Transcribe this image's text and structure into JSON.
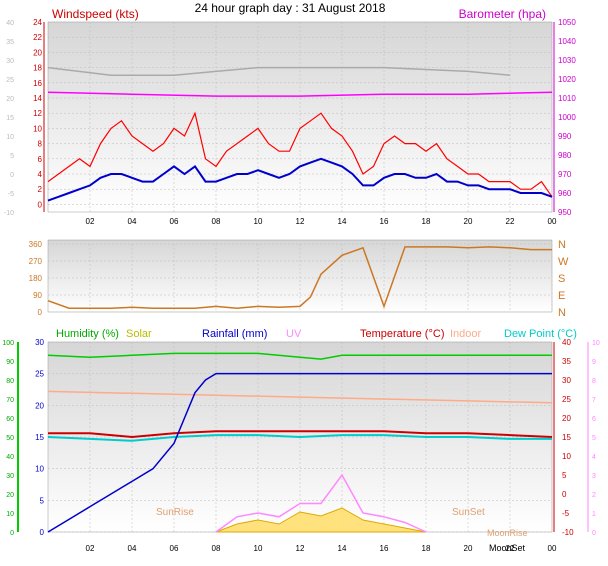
{
  "chart_data": [
    {
      "type": "line",
      "title": "24 hour graph day : 31 August 2018",
      "x_ticks": [
        "02",
        "04",
        "06",
        "08",
        "10",
        "12",
        "14",
        "16",
        "18",
        "20",
        "22",
        "00"
      ],
      "left_axis": {
        "label": "Windspeed (kts)",
        "ticks": [
          "-1",
          "0",
          "1",
          "2",
          "3",
          "4",
          "5",
          "6",
          "7",
          "8",
          "9",
          "10",
          "11",
          "12",
          "13",
          "14",
          "15",
          "16",
          "17",
          "18",
          "19",
          "20",
          "21",
          "22",
          "23",
          "24"
        ],
        "labeled": [
          "-10",
          "-5",
          "0",
          "5",
          "10",
          "15",
          "20",
          "25",
          "30",
          "35",
          "40"
        ],
        "range": [
          -1,
          24
        ]
      },
      "right_axis": {
        "label": "Barometer (hpa)",
        "ticks": [
          "950",
          "960",
          "970",
          "980",
          "990",
          "1000",
          "1010",
          "1020",
          "1030",
          "1040",
          "1050"
        ],
        "range": [
          950,
          1050
        ]
      },
      "series": [
        {
          "name": "Windspeed (kts)",
          "color": "#ff0000",
          "x": [
            0,
            0.5,
            1,
            1.5,
            2,
            2.5,
            3,
            3.5,
            4,
            4.5,
            5,
            5.5,
            6,
            6.5,
            7,
            7.5,
            8,
            8.5,
            9,
            9.5,
            10,
            10.5,
            11,
            11.5,
            12,
            12.5,
            13,
            13.5,
            14,
            14.5,
            15,
            15.5,
            16,
            16.5,
            17,
            17.5,
            18,
            18.5,
            19,
            19.5,
            20,
            20.5,
            21,
            21.5,
            22,
            22.5,
            23,
            23.5,
            24
          ],
          "y": [
            3,
            4,
            5,
            6,
            5,
            8,
            10,
            11,
            9,
            8,
            7,
            8,
            10,
            9,
            12,
            6,
            5,
            7,
            8,
            9,
            10,
            8,
            7,
            7,
            10,
            11,
            12,
            10,
            9,
            7,
            4,
            5,
            8,
            9,
            8,
            8,
            7,
            8,
            6,
            5,
            4,
            4,
            3,
            3,
            3,
            2,
            2,
            3,
            1
          ]
        },
        {
          "name": "Wind average",
          "color": "#0000cc",
          "x": [
            0,
            0.5,
            1,
            1.5,
            2,
            2.5,
            3,
            3.5,
            4,
            4.5,
            5,
            5.5,
            6,
            6.5,
            7,
            7.5,
            8,
            8.5,
            9,
            9.5,
            10,
            10.5,
            11,
            11.5,
            12,
            12.5,
            13,
            13.5,
            14,
            14.5,
            15,
            15.5,
            16,
            16.5,
            17,
            17.5,
            18,
            18.5,
            19,
            19.5,
            20,
            20.5,
            21,
            21.5,
            22,
            22.5,
            23,
            23.5,
            24
          ],
          "y": [
            0.5,
            1,
            1.5,
            2,
            2.5,
            3.5,
            4,
            4,
            3.5,
            3,
            3,
            4,
            5,
            4,
            5,
            3,
            3,
            3.5,
            4,
            4,
            4.5,
            4,
            3.5,
            4,
            5,
            5.5,
            6,
            5.5,
            5,
            4,
            2.5,
            2.5,
            3.5,
            4,
            4,
            3.5,
            3.5,
            4,
            3,
            3,
            2.5,
            2.5,
            2,
            2,
            2,
            1.5,
            1.5,
            1.5,
            1
          ]
        },
        {
          "name": "Barometer (hpa)",
          "color": "#ff00ff",
          "x": [
            0,
            4,
            8,
            12,
            16,
            20,
            24
          ],
          "y": [
            1013,
            1012,
            1011,
            1011,
            1012,
            1012,
            1013
          ]
        },
        {
          "name": "Gust (grey)",
          "color": "#aaaaaa",
          "x": [
            0,
            3,
            6,
            8,
            10,
            12,
            16,
            20,
            22
          ],
          "y": [
            18,
            17,
            17,
            17.5,
            18,
            18,
            18,
            17.5,
            17
          ]
        }
      ]
    },
    {
      "type": "line",
      "y_ticks": [
        "0",
        "90",
        "180",
        "270",
        "360"
      ],
      "compass": [
        "N",
        "W",
        "S",
        "E",
        "N"
      ],
      "series": [
        {
          "name": "Wind direction",
          "color": "#cc7722",
          "x": [
            0,
            1,
            2,
            3,
            4,
            5,
            6,
            7,
            8,
            9,
            10,
            11,
            12,
            12.5,
            13,
            14,
            15,
            16,
            17,
            18,
            19,
            20,
            21,
            22,
            23,
            24
          ],
          "y": [
            60,
            20,
            20,
            20,
            25,
            20,
            20,
            20,
            30,
            20,
            30,
            25,
            30,
            80,
            200,
            300,
            340,
            30,
            345,
            345,
            345,
            340,
            345,
            340,
            330,
            330
          ]
        }
      ]
    },
    {
      "type": "line",
      "legend": [
        "Humidity (%)",
        "Solar",
        "Rainfall (mm)",
        "UV",
        "Temperature (°C)",
        "Indoor",
        "Dew Point (°C)"
      ],
      "legend_colors": [
        "#00aa00",
        "#bbbb00",
        "#0000cc",
        "#ff88ff",
        "#cc0000",
        "#ffaa88",
        "#00cccc"
      ],
      "humidity_axis": {
        "ticks": [
          "0",
          "10",
          "20",
          "30",
          "40",
          "50",
          "60",
          "70",
          "80",
          "90",
          "100"
        ],
        "range": [
          0,
          100
        ]
      },
      "rain_axis": {
        "ticks": [
          "0",
          "5",
          "10",
          "15",
          "20",
          "25",
          "30"
        ],
        "range": [
          0,
          30
        ]
      },
      "temp_axis": {
        "ticks": [
          "-10",
          "-5",
          "0",
          "5",
          "10",
          "15",
          "20",
          "25",
          "30",
          "35",
          "40"
        ],
        "range": [
          -10,
          40
        ]
      },
      "uv_axis": {
        "ticks": [
          "0",
          "1",
          "2",
          "3",
          "4",
          "5",
          "6",
          "7",
          "8",
          "9",
          "10"
        ],
        "range": [
          0,
          10
        ]
      },
      "x_ticks": [
        "02",
        "04",
        "06",
        "08",
        "10",
        "12",
        "14",
        "16",
        "18",
        "20",
        "22",
        "00"
      ],
      "annotations": {
        "sunrise": "SunRise",
        "sunset": "SunSet",
        "moonrise": "MoonRise",
        "moonset": "MoonSet"
      },
      "series": [
        {
          "name": "Humidity (%)",
          "color": "#00cc00",
          "x": [
            0,
            2,
            4,
            6,
            8,
            10,
            12,
            13,
            14,
            16,
            18,
            20,
            22,
            24
          ],
          "y": [
            93,
            92,
            93,
            94,
            94,
            94,
            92,
            91,
            93,
            93,
            93,
            93,
            93,
            93
          ]
        },
        {
          "name": "Indoor",
          "color": "#ffaa88",
          "x": [
            0,
            4,
            8,
            12,
            16,
            20,
            24
          ],
          "y": [
            27,
            26.5,
            26,
            25.5,
            25,
            24.5,
            24
          ]
        },
        {
          "name": "Temperature (°C)",
          "color": "#cc0000",
          "x": [
            0,
            2,
            4,
            6,
            8,
            10,
            12,
            14,
            16,
            18,
            20,
            22,
            24
          ],
          "y": [
            16,
            16,
            15,
            16,
            16.5,
            16.5,
            16.5,
            16.5,
            16.5,
            16,
            16,
            15.5,
            15
          ]
        },
        {
          "name": "Dew Point (°C)",
          "color": "#00cccc",
          "x": [
            0,
            2,
            4,
            6,
            8,
            10,
            12,
            14,
            16,
            18,
            20,
            22,
            24
          ],
          "y": [
            15,
            14.5,
            14,
            15,
            15.5,
            15.5,
            15,
            15.5,
            15.5,
            15,
            15,
            14.5,
            14.5
          ]
        },
        {
          "name": "Rainfall (mm)",
          "color": "#0000cc",
          "x": [
            0,
            1,
            2,
            3,
            4,
            5,
            6,
            6.5,
            7,
            7.5,
            8,
            24
          ],
          "y": [
            0,
            2,
            4,
            6,
            8,
            10,
            14,
            18,
            22,
            24,
            25,
            25
          ]
        },
        {
          "name": "Solar",
          "color": "#ffdd66",
          "x": [
            8,
            9,
            10,
            11,
            12,
            13,
            14,
            15,
            16,
            17,
            18
          ],
          "y": [
            0,
            2,
            3,
            2,
            5,
            4,
            6,
            3,
            2,
            1,
            0
          ]
        },
        {
          "name": "UV",
          "color": "#ff88ff",
          "x": [
            8,
            9,
            10,
            11,
            12,
            13,
            14,
            15,
            16,
            17,
            18
          ],
          "y": [
            0,
            0.8,
            1,
            0.8,
            1.5,
            1.5,
            3,
            1,
            0.8,
            0.5,
            0
          ]
        }
      ]
    }
  ]
}
